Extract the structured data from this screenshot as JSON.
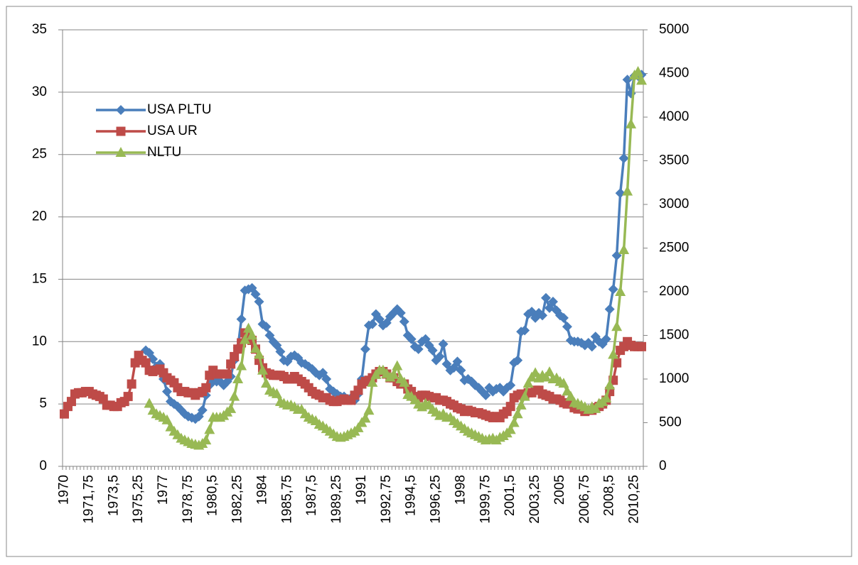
{
  "chart_data": {
    "type": "line",
    "categories": [
      "1970",
      null,
      null,
      null,
      null,
      null,
      null,
      "1971,75",
      null,
      null,
      null,
      null,
      null,
      null,
      "1973,5",
      null,
      null,
      null,
      null,
      null,
      null,
      "1975,25",
      null,
      null,
      null,
      null,
      null,
      null,
      "1977",
      null,
      null,
      null,
      null,
      null,
      null,
      "1978,75",
      null,
      null,
      null,
      null,
      null,
      null,
      "1980,5",
      null,
      null,
      null,
      null,
      null,
      null,
      "1982,25",
      null,
      null,
      null,
      null,
      null,
      null,
      "1984",
      null,
      null,
      null,
      null,
      null,
      null,
      "1985,75",
      null,
      null,
      null,
      null,
      null,
      null,
      "1987,5",
      null,
      null,
      null,
      null,
      null,
      null,
      "1989,25",
      null,
      null,
      null,
      null,
      null,
      null,
      "1991",
      null,
      null,
      null,
      null,
      null,
      null,
      "1992,75",
      null,
      null,
      null,
      null,
      null,
      null,
      "1994,5",
      null,
      null,
      null,
      null,
      null,
      null,
      "1996,25",
      null,
      null,
      null,
      null,
      null,
      null,
      "1998",
      null,
      null,
      null,
      null,
      null,
      null,
      "1999,75",
      null,
      null,
      null,
      null,
      null,
      null,
      "2001,5",
      null,
      null,
      null,
      null,
      null,
      null,
      "2003,25",
      null,
      null,
      null,
      null,
      null,
      null,
      "2005",
      null,
      null,
      null,
      null,
      null,
      null,
      "2006,75",
      null,
      null,
      null,
      null,
      null,
      null,
      "2008,5",
      null,
      null,
      null,
      null,
      null,
      null,
      "2010,25",
      null,
      null
    ],
    "series": [
      {
        "name": "USA PLTU",
        "color": "#4a7ebb",
        "marker": "diamond",
        "axis": "y",
        "values": [
          null,
          null,
          null,
          null,
          null,
          null,
          null,
          null,
          null,
          null,
          null,
          null,
          null,
          null,
          null,
          null,
          null,
          null,
          null,
          null,
          null,
          null,
          null,
          9.3,
          9.1,
          8.6,
          8.0,
          8.2,
          7.0,
          6.0,
          5.2,
          5.0,
          4.8,
          4.5,
          4.2,
          4.0,
          3.9,
          3.8,
          4.0,
          4.5,
          5.7,
          6.5,
          6.8,
          6.8,
          6.8,
          6.5,
          6.8,
          7.2,
          8.5,
          9.5,
          11.8,
          14.1,
          14.2,
          14.3,
          13.8,
          13.2,
          11.4,
          11.2,
          10.5,
          10.0,
          9.7,
          9.2,
          8.5,
          8.4,
          8.8,
          8.9,
          8.7,
          8.3,
          8.2,
          8.0,
          7.8,
          7.5,
          7.3,
          7.5,
          7.0,
          6.2,
          6.0,
          5.8,
          5.6,
          5.6,
          5.4,
          5.5,
          5.3,
          5.8,
          7.0,
          9.4,
          11.3,
          11.4,
          12.2,
          11.8,
          11.3,
          11.5,
          12.0,
          12.3,
          12.6,
          12.3,
          11.6,
          10.5,
          10.2,
          9.6,
          9.4,
          10.0,
          10.2,
          9.7,
          9.3,
          8.5,
          8.8,
          9.8,
          8.2,
          7.7,
          7.9,
          8.4,
          7.7,
          6.9,
          7.0,
          6.8,
          6.5,
          6.3,
          6.0,
          5.7,
          6.3,
          6.0,
          6.2,
          6.3,
          6.0,
          6.3,
          6.5,
          8.3,
          8.5,
          10.8,
          10.9,
          12.2,
          12.4,
          11.9,
          12.3,
          12.1,
          13.5,
          12.7,
          13.2,
          12.5,
          12.1,
          11.9,
          11.2,
          10.1,
          10.0,
          10.0,
          9.9,
          9.7,
          9.9,
          9.6,
          10.4,
          10.0,
          9.8,
          10.2,
          12.6,
          14.2,
          16.9,
          21.9,
          24.7,
          31.0,
          29.9,
          31.3,
          31.3,
          31.4
        ]
      },
      {
        "name": "USA UR",
        "color": "#be4b48",
        "marker": "square",
        "axis": "y",
        "values": [
          4.2,
          4.8,
          5.2,
          5.8,
          5.9,
          5.9,
          6.0,
          6.0,
          5.8,
          5.7,
          5.6,
          5.4,
          4.9,
          4.9,
          4.8,
          4.8,
          5.1,
          5.2,
          5.6,
          6.6,
          8.3,
          8.9,
          8.5,
          8.3,
          7.7,
          7.6,
          7.7,
          7.8,
          7.5,
          7.1,
          6.9,
          6.7,
          6.3,
          6.0,
          6.0,
          5.9,
          5.9,
          5.7,
          5.9,
          6.0,
          6.3,
          7.3,
          7.7,
          7.4,
          7.4,
          7.4,
          7.4,
          8.2,
          8.8,
          9.4,
          9.9,
          10.7,
          10.4,
          10.1,
          9.4,
          8.5,
          7.9,
          7.5,
          7.4,
          7.3,
          7.3,
          7.3,
          7.2,
          7.0,
          7.0,
          7.2,
          7.0,
          6.8,
          6.6,
          6.3,
          6.0,
          5.8,
          5.7,
          5.5,
          5.5,
          5.3,
          5.2,
          5.2,
          5.3,
          5.4,
          5.3,
          5.3,
          5.7,
          6.1,
          6.6,
          6.8,
          6.9,
          7.1,
          7.4,
          7.6,
          7.6,
          7.4,
          7.1,
          7.1,
          6.8,
          6.6,
          6.6,
          6.2,
          6.0,
          5.6,
          5.5,
          5.7,
          5.7,
          5.6,
          5.5,
          5.5,
          5.3,
          5.3,
          5.2,
          5.0,
          4.9,
          4.7,
          4.6,
          4.4,
          4.5,
          4.4,
          4.3,
          4.3,
          4.2,
          4.1,
          4.0,
          3.9,
          4.0,
          3.9,
          4.2,
          4.4,
          4.8,
          5.5,
          5.7,
          5.8,
          5.7,
          5.9,
          5.9,
          6.1,
          6.1,
          5.8,
          5.7,
          5.6,
          5.4,
          5.4,
          5.3,
          5.1,
          5.0,
          5.0,
          4.7,
          4.6,
          4.6,
          4.4,
          4.5,
          4.5,
          4.7,
          4.8,
          5.0,
          5.3,
          6.0,
          6.9,
          8.3,
          9.3,
          9.6,
          10.0,
          9.7,
          9.6,
          9.6,
          9.6
        ]
      },
      {
        "name": "NLTU",
        "color": "#98b954",
        "marker": "triangle",
        "axis": "y2",
        "values": [
          null,
          null,
          null,
          null,
          null,
          null,
          null,
          null,
          null,
          null,
          null,
          null,
          null,
          null,
          null,
          null,
          null,
          null,
          null,
          null,
          null,
          null,
          null,
          null,
          720,
          640,
          600,
          580,
          560,
          530,
          450,
          400,
          360,
          320,
          300,
          280,
          260,
          250,
          240,
          260,
          300,
          420,
          560,
          560,
          560,
          580,
          620,
          660,
          800,
          1000,
          1150,
          1450,
          1580,
          1500,
          1350,
          1280,
          1100,
          950,
          870,
          850,
          830,
          740,
          720,
          700,
          700,
          680,
          650,
          650,
          600,
          560,
          540,
          520,
          480,
          460,
          430,
          400,
          370,
          340,
          330,
          340,
          360,
          380,
          400,
          440,
          500,
          550,
          640,
          960,
          1050,
          1100,
          1100,
          1060,
          1020,
          1050,
          1150,
          1000,
          960,
          820,
          800,
          760,
          710,
          680,
          720,
          700,
          650,
          620,
          580,
          600,
          560,
          560,
          520,
          490,
          460,
          430,
          400,
          380,
          360,
          340,
          320,
          300,
          310,
          320,
          300,
          330,
          350,
          380,
          420,
          500,
          600,
          700,
          800,
          950,
          1020,
          1070,
          1010,
          1040,
          1020,
          1080,
          1000,
          1010,
          970,
          950,
          860,
          800,
          730,
          720,
          700,
          680,
          650,
          680,
          660,
          720,
          740,
          780,
          930,
          1280,
          1600,
          2000,
          2480,
          3150,
          3920,
          4480,
          4520,
          4420
        ]
      }
    ],
    "ylim": [
      0,
      35
    ],
    "yticks": [
      0,
      5,
      10,
      15,
      20,
      25,
      30,
      35
    ],
    "y2lim": [
      0,
      5000
    ],
    "y2ticks": [
      0,
      500,
      1000,
      1500,
      2000,
      2500,
      3000,
      3500,
      4000,
      4500,
      5000
    ],
    "grid": true,
    "legend": "upper left"
  }
}
